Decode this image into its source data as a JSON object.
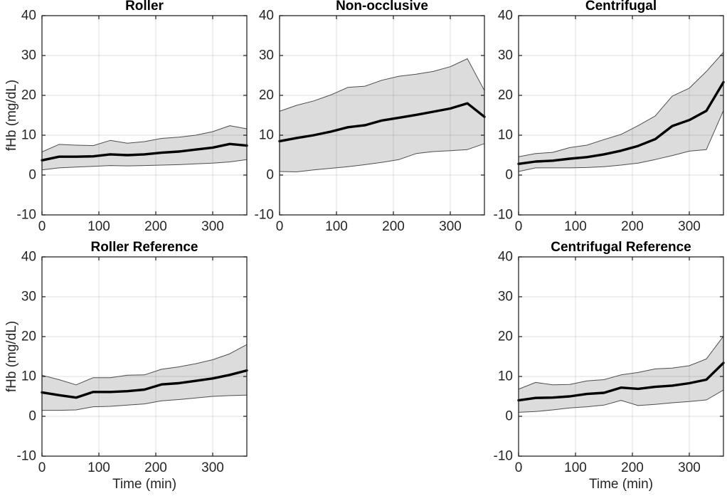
{
  "figure": {
    "background": "#ffffff",
    "axis_color": "#262626",
    "grid_color": "#262626",
    "grid_alpha": 0.15,
    "band_fill": "#dcdcdc",
    "band_edge": "#4d4d4d",
    "mean_line_color": "#000000"
  },
  "chart_data": [
    {
      "type": "line",
      "title": "Roller",
      "xlabel": "",
      "ylabel": "fHb (mg/dL)",
      "xlim": [
        0,
        360
      ],
      "ylim": [
        -10,
        40
      ],
      "xticks": [
        0,
        100,
        200,
        300
      ],
      "yticks": [
        -10,
        0,
        10,
        20,
        30,
        40
      ],
      "grid": true,
      "legend": "none",
      "x": [
        0,
        30,
        60,
        90,
        120,
        150,
        180,
        210,
        240,
        270,
        300,
        330,
        360
      ],
      "series": [
        {
          "name": "mean",
          "values": [
            3.7,
            4.6,
            4.6,
            4.7,
            5.2,
            5.0,
            5.2,
            5.6,
            5.9,
            6.4,
            6.9,
            7.8,
            7.4
          ]
        },
        {
          "name": "upper",
          "values": [
            5.8,
            7.7,
            7.5,
            7.4,
            8.7,
            8.0,
            8.4,
            9.2,
            9.5,
            10.0,
            10.9,
            12.4,
            11.6
          ]
        },
        {
          "name": "lower",
          "values": [
            1.3,
            1.8,
            2.0,
            2.2,
            2.4,
            2.3,
            2.4,
            2.5,
            2.6,
            2.8,
            3.0,
            3.3,
            3.9
          ]
        }
      ]
    },
    {
      "type": "line",
      "title": "Non-occlusive",
      "xlabel": "",
      "ylabel": "",
      "xlim": [
        0,
        360
      ],
      "ylim": [
        -10,
        40
      ],
      "xticks": [
        0,
        100,
        200,
        300
      ],
      "yticks": [
        -10,
        0,
        10,
        20,
        30,
        40
      ],
      "grid": true,
      "legend": "none",
      "x": [
        0,
        30,
        60,
        90,
        120,
        150,
        180,
        210,
        240,
        270,
        300,
        330,
        360
      ],
      "series": [
        {
          "name": "mean",
          "values": [
            8.5,
            9.3,
            10.0,
            10.9,
            12.0,
            12.5,
            13.7,
            14.4,
            15.1,
            15.9,
            16.7,
            18.0,
            14.6
          ]
        },
        {
          "name": "upper",
          "values": [
            16.0,
            17.5,
            18.6,
            20.1,
            22.0,
            22.3,
            23.8,
            24.8,
            25.3,
            26.0,
            27.2,
            29.2,
            21.2
          ]
        },
        {
          "name": "lower",
          "values": [
            0.9,
            0.8,
            1.3,
            1.7,
            2.1,
            2.6,
            3.2,
            3.9,
            5.4,
            5.9,
            6.1,
            6.4,
            7.9
          ]
        }
      ]
    },
    {
      "type": "line",
      "title": "Centrifugal",
      "xlabel": "",
      "ylabel": "",
      "xlim": [
        0,
        360
      ],
      "ylim": [
        -10,
        40
      ],
      "xticks": [
        0,
        100,
        200,
        300
      ],
      "yticks": [
        -10,
        0,
        10,
        20,
        30,
        40
      ],
      "grid": true,
      "legend": "none",
      "x": [
        0,
        30,
        60,
        90,
        120,
        150,
        180,
        210,
        240,
        270,
        300,
        330,
        360
      ],
      "series": [
        {
          "name": "mean",
          "values": [
            2.8,
            3.4,
            3.6,
            4.1,
            4.5,
            5.2,
            6.1,
            7.3,
            9.0,
            12.3,
            13.8,
            16.1,
            23.3
          ]
        },
        {
          "name": "upper",
          "values": [
            4.6,
            5.4,
            5.7,
            6.9,
            7.5,
            8.9,
            10.2,
            12.4,
            14.8,
            19.8,
            21.8,
            26.0,
            30.8
          ]
        },
        {
          "name": "lower",
          "values": [
            0.9,
            1.8,
            1.8,
            1.8,
            1.9,
            2.1,
            2.5,
            3.0,
            3.9,
            4.9,
            6.0,
            6.4,
            16.2
          ]
        }
      ]
    },
    {
      "type": "line",
      "title": "Roller Reference",
      "xlabel": "Time (min)",
      "ylabel": "fHb (mg/dL)",
      "xlim": [
        0,
        360
      ],
      "ylim": [
        -10,
        40
      ],
      "xticks": [
        0,
        100,
        200,
        300
      ],
      "yticks": [
        -10,
        0,
        10,
        20,
        30,
        40
      ],
      "grid": true,
      "legend": "none",
      "x": [
        0,
        30,
        60,
        90,
        120,
        150,
        180,
        210,
        240,
        270,
        300,
        330,
        360
      ],
      "series": [
        {
          "name": "mean",
          "values": [
            6.0,
            5.3,
            4.7,
            6.1,
            6.1,
            6.3,
            6.7,
            8.0,
            8.3,
            8.9,
            9.5,
            10.4,
            11.5
          ]
        },
        {
          "name": "upper",
          "values": [
            10.3,
            9.2,
            7.9,
            9.7,
            9.7,
            10.3,
            10.4,
            11.8,
            12.4,
            13.2,
            14.2,
            15.7,
            18.0
          ]
        },
        {
          "name": "lower",
          "values": [
            1.5,
            1.5,
            1.6,
            2.4,
            2.5,
            2.8,
            3.1,
            3.9,
            4.2,
            4.6,
            5.0,
            5.2,
            5.3
          ]
        }
      ]
    },
    {
      "type": "line",
      "title": "Centrifugal Reference",
      "xlabel": "Time (min)",
      "ylabel": "",
      "xlim": [
        0,
        360
      ],
      "ylim": [
        -10,
        40
      ],
      "xticks": [
        0,
        100,
        200,
        300
      ],
      "yticks": [
        -10,
        0,
        10,
        20,
        30,
        40
      ],
      "grid": true,
      "legend": "none",
      "x": [
        0,
        30,
        60,
        90,
        120,
        150,
        180,
        210,
        240,
        270,
        300,
        330,
        360
      ],
      "series": [
        {
          "name": "mean",
          "values": [
            4.0,
            4.6,
            4.7,
            5.0,
            5.6,
            5.9,
            7.2,
            6.9,
            7.4,
            7.7,
            8.3,
            9.2,
            13.4
          ]
        },
        {
          "name": "upper",
          "values": [
            6.8,
            8.5,
            7.9,
            8.0,
            8.9,
            9.2,
            10.4,
            11.0,
            11.9,
            12.1,
            12.7,
            14.4,
            20.1
          ]
        },
        {
          "name": "lower",
          "values": [
            1.0,
            1.2,
            1.6,
            2.1,
            2.4,
            2.8,
            4.0,
            2.7,
            3.0,
            3.4,
            3.7,
            4.1,
            6.6
          ]
        }
      ]
    }
  ]
}
